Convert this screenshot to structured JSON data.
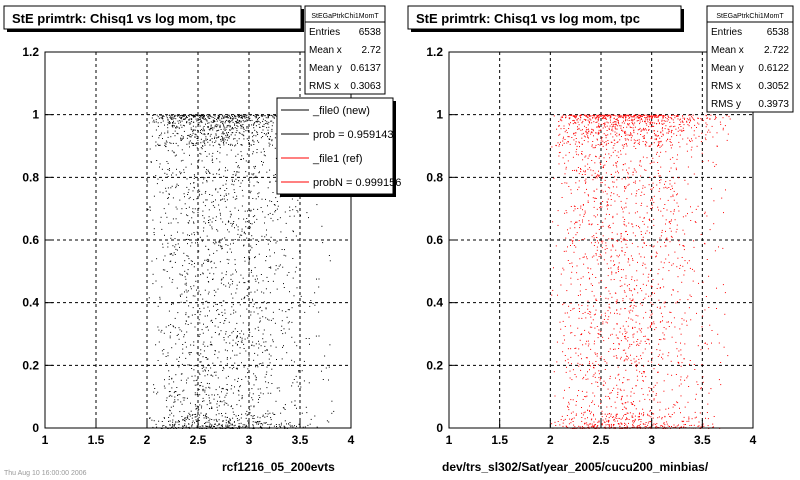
{
  "footer": {
    "timestamp": "Thu Aug 10 16:00:00 2006"
  },
  "colors": {
    "new": "#000000",
    "ref": "#ff0000"
  },
  "chart_data": [
    {
      "type": "scatter",
      "title": "StE primtrk: Chisq1 vs log mom, tpc",
      "xlabel": "rcf1216_05_200evts",
      "ylabel": "",
      "xlim": [
        1,
        4
      ],
      "ylim": [
        0,
        1.2
      ],
      "x_ticks": [
        "1",
        "1.5",
        "2",
        "2.5",
        "3",
        "3.5",
        "4"
      ],
      "y_ticks": [
        "0",
        "0.2",
        "0.4",
        "0.6",
        "0.8",
        "1",
        "1.2"
      ],
      "grid": true,
      "marker_color": "#000000",
      "stats": {
        "name": "StEGaPtrkChi1MomT",
        "rows": [
          {
            "label": "Entries",
            "value": "6538"
          },
          {
            "label": "Mean x",
            "value": "2.72"
          },
          {
            "label": "Mean y",
            "value": "0.6137"
          },
          {
            "label": "RMS x",
            "value": "0.3063"
          }
        ]
      },
      "legend": {
        "position": "top-right",
        "entries": [
          {
            "label": "_file0 (new)",
            "color": "#000000"
          },
          {
            "label": "prob = 0.959143",
            "color": "#000000"
          },
          {
            "label": "_file1 (ref)",
            "color": "#ff0000"
          },
          {
            "label": "probN = 0.999156",
            "color": "#ff0000"
          }
        ]
      },
      "density": {
        "x_profile": [
          [
            2.0,
            0.05
          ],
          [
            2.1,
            0.3
          ],
          [
            2.2,
            0.6
          ],
          [
            2.35,
            0.85
          ],
          [
            2.55,
            1.0
          ],
          [
            2.75,
            1.0
          ],
          [
            2.95,
            0.9
          ],
          [
            3.15,
            0.65
          ],
          [
            3.35,
            0.4
          ],
          [
            3.55,
            0.18
          ],
          [
            3.75,
            0.07
          ],
          [
            3.85,
            0.02
          ]
        ],
        "y_bands": [
          {
            "range": [
              0.9,
              1.0
            ],
            "weight": 0.3
          },
          {
            "range": [
              0.0,
              0.05
            ],
            "weight": 0.15
          },
          {
            "range": [
              0.05,
              0.9
            ],
            "weight": 0.55
          }
        ]
      }
    },
    {
      "type": "scatter",
      "title": "StE primtrk: Chisq1 vs log mom, tpc",
      "xlabel": "dev/trs_sl302/Sat/year_2005/cucu200_minbias/",
      "ylabel": "",
      "xlim": [
        1,
        4
      ],
      "ylim": [
        0,
        1.2
      ],
      "x_ticks": [
        "1",
        "1.5",
        "2",
        "2.5",
        "3",
        "3.5",
        "4"
      ],
      "y_ticks": [
        "0",
        "0.2",
        "0.4",
        "0.6",
        "0.8",
        "1",
        "1.2"
      ],
      "grid": true,
      "marker_color": "#ff0000",
      "stats": {
        "name": "StEGaPtrkChi1MomT",
        "rows": [
          {
            "label": "Entries",
            "value": "6538"
          },
          {
            "label": "Mean x",
            "value": "2.722"
          },
          {
            "label": "Mean y",
            "value": "0.6122"
          },
          {
            "label": "RMS x",
            "value": "0.3052"
          },
          {
            "label": "RMS y",
            "value": "0.3973"
          }
        ]
      },
      "density": {
        "x_profile": [
          [
            2.0,
            0.05
          ],
          [
            2.1,
            0.3
          ],
          [
            2.2,
            0.6
          ],
          [
            2.35,
            0.85
          ],
          [
            2.55,
            1.0
          ],
          [
            2.75,
            1.0
          ],
          [
            2.95,
            0.9
          ],
          [
            3.15,
            0.65
          ],
          [
            3.35,
            0.4
          ],
          [
            3.55,
            0.18
          ],
          [
            3.75,
            0.07
          ],
          [
            3.85,
            0.02
          ]
        ],
        "y_bands": [
          {
            "range": [
              0.9,
              1.0
            ],
            "weight": 0.3
          },
          {
            "range": [
              0.0,
              0.05
            ],
            "weight": 0.15
          },
          {
            "range": [
              0.05,
              0.9
            ],
            "weight": 0.55
          }
        ]
      }
    }
  ]
}
